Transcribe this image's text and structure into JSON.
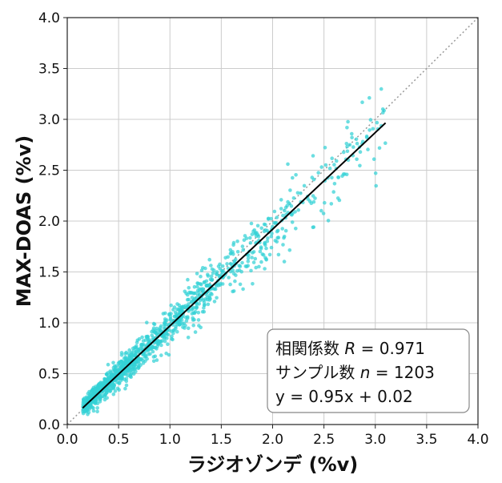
{
  "chart_data": {
    "type": "scatter",
    "xlabel": "ラジオゾンデ (%v)",
    "ylabel": "MAX-DOAS (%v)",
    "xlim": [
      0.0,
      4.0
    ],
    "ylim": [
      0.0,
      4.0
    ],
    "xticks": [
      "0.0",
      "0.5",
      "1.0",
      "1.5",
      "2.0",
      "2.5",
      "3.0",
      "3.5",
      "4.0"
    ],
    "yticks": [
      "0.0",
      "0.5",
      "1.0",
      "1.5",
      "2.0",
      "2.5",
      "3.0",
      "3.5",
      "4.0"
    ],
    "grid": true,
    "point_color": "#33d1d6",
    "fit_color": "#000000",
    "fit_line": {
      "slope": 0.95,
      "intercept": 0.02,
      "x_range": [
        0.15,
        3.1
      ]
    },
    "one_to_one_line": true,
    "n_points": 1203,
    "annotation": {
      "line1_prefix": "相関係数 ",
      "line1_var": "R",
      "line1_value": " = 0.971",
      "line2_prefix": "サンプル数 ",
      "line2_var": "n",
      "line2_value": " = 1203",
      "line3": "y = 0.95x + 0.02",
      "placement": "bottom-right"
    }
  }
}
